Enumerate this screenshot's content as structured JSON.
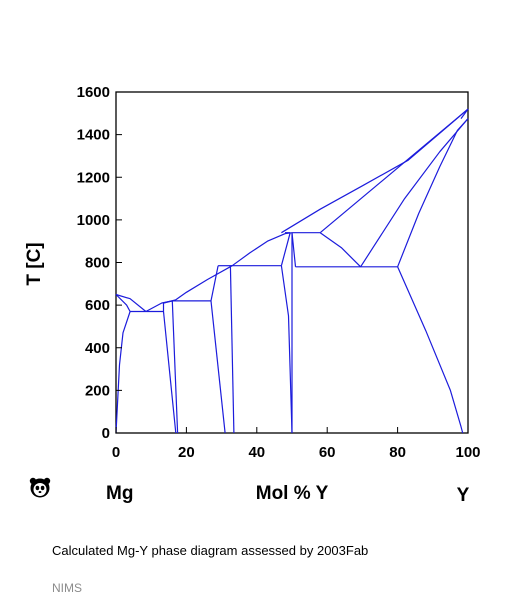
{
  "chart_data": {
    "type": "phase-diagram",
    "title": "",
    "xlabel": "Mol % Y",
    "ylabel": "T [C]",
    "x_left_label": "Mg",
    "x_right_label": "Y",
    "xlim": [
      0,
      100
    ],
    "ylim": [
      0,
      1600
    ],
    "x_ticks": [
      0,
      20,
      40,
      60,
      80,
      100
    ],
    "y_ticks": [
      0,
      200,
      400,
      600,
      800,
      1000,
      1200,
      1400,
      1600
    ],
    "line_color": "#1c1cdc",
    "boundaries": [
      {
        "points": [
          [
            0,
            650
          ],
          [
            3,
            600
          ],
          [
            4,
            570
          ]
        ]
      },
      {
        "points": [
          [
            0,
            650
          ],
          [
            4,
            630
          ],
          [
            8.5,
            570
          ]
        ]
      },
      {
        "points": [
          [
            8.5,
            570
          ],
          [
            13,
            610
          ],
          [
            16,
            620
          ]
        ]
      },
      {
        "points": [
          [
            13.5,
            610
          ],
          [
            17,
            625
          ],
          [
            20,
            660
          ],
          [
            26,
            720
          ],
          [
            33,
            785
          ]
        ]
      },
      {
        "points": [
          [
            33,
            785
          ],
          [
            38,
            845
          ],
          [
            43,
            900
          ],
          [
            48,
            935
          ],
          [
            50,
            940
          ]
        ]
      },
      {
        "points": [
          [
            47,
            940
          ],
          [
            58,
            1050
          ],
          [
            70,
            1160
          ],
          [
            83,
            1280
          ],
          [
            100,
            1520
          ]
        ]
      },
      {
        "points": [
          [
            0,
            0
          ],
          [
            1,
            320
          ],
          [
            2,
            470
          ],
          [
            4,
            570
          ]
        ]
      },
      {
        "points": [
          [
            4,
            570
          ],
          [
            13.5,
            570
          ]
        ]
      },
      {
        "points": [
          [
            13.5,
            570
          ],
          [
            13.5,
            610
          ]
        ]
      },
      {
        "points": [
          [
            13.5,
            570
          ],
          [
            17,
            0
          ]
        ]
      },
      {
        "points": [
          [
            13.5,
            610
          ],
          [
            16,
            620
          ]
        ]
      },
      {
        "points": [
          [
            16,
            620
          ],
          [
            17.5,
            0
          ]
        ]
      },
      {
        "points": [
          [
            16,
            620
          ],
          [
            27,
            620
          ]
        ]
      },
      {
        "points": [
          [
            27,
            620
          ],
          [
            29,
            785
          ]
        ]
      },
      {
        "points": [
          [
            27,
            620
          ],
          [
            31,
            0
          ]
        ]
      },
      {
        "points": [
          [
            29,
            785
          ],
          [
            33,
            785
          ]
        ]
      },
      {
        "points": [
          [
            32.5,
            785
          ],
          [
            33.5,
            0
          ]
        ]
      },
      {
        "points": [
          [
            32.5,
            785
          ],
          [
            47,
            785
          ]
        ]
      },
      {
        "points": [
          [
            47,
            785
          ],
          [
            49.5,
            940
          ]
        ]
      },
      {
        "points": [
          [
            48,
            940
          ],
          [
            49.5,
            940
          ]
        ]
      },
      {
        "points": [
          [
            47,
            785
          ],
          [
            49,
            550
          ],
          [
            50,
            0
          ]
        ]
      },
      {
        "points": [
          [
            50,
            940
          ],
          [
            50,
            0
          ]
        ]
      },
      {
        "points": [
          [
            50,
            940
          ],
          [
            51,
            780
          ]
        ]
      },
      {
        "points": [
          [
            51,
            780
          ],
          [
            80,
            780
          ]
        ]
      },
      {
        "points": [
          [
            50,
            940
          ],
          [
            58,
            940
          ]
        ]
      },
      {
        "points": [
          [
            58,
            940
          ],
          [
            64,
            870
          ],
          [
            69.5,
            780
          ]
        ]
      },
      {
        "points": [
          [
            58,
            940
          ],
          [
            100,
            1520
          ]
        ]
      },
      {
        "points": [
          [
            69.5,
            780
          ],
          [
            73,
            870
          ],
          [
            82,
            1100
          ],
          [
            92,
            1320
          ],
          [
            100,
            1475
          ]
        ]
      },
      {
        "points": [
          [
            80,
            780
          ],
          [
            86,
            1030
          ],
          [
            92,
            1250
          ],
          [
            97,
            1420
          ],
          [
            100,
            1475
          ]
        ]
      },
      {
        "points": [
          [
            80,
            780
          ],
          [
            88,
            480
          ],
          [
            95,
            200
          ],
          [
            98,
            30
          ],
          [
            98.5,
            0
          ]
        ]
      },
      {
        "points": [
          [
            98,
            1475
          ],
          [
            100,
            1520
          ]
        ]
      }
    ]
  },
  "caption": "Calculated Mg-Y phase diagram assessed by 2003Fab",
  "source": "NIMS",
  "logo": {
    "icon": "panda-logo-icon"
  }
}
